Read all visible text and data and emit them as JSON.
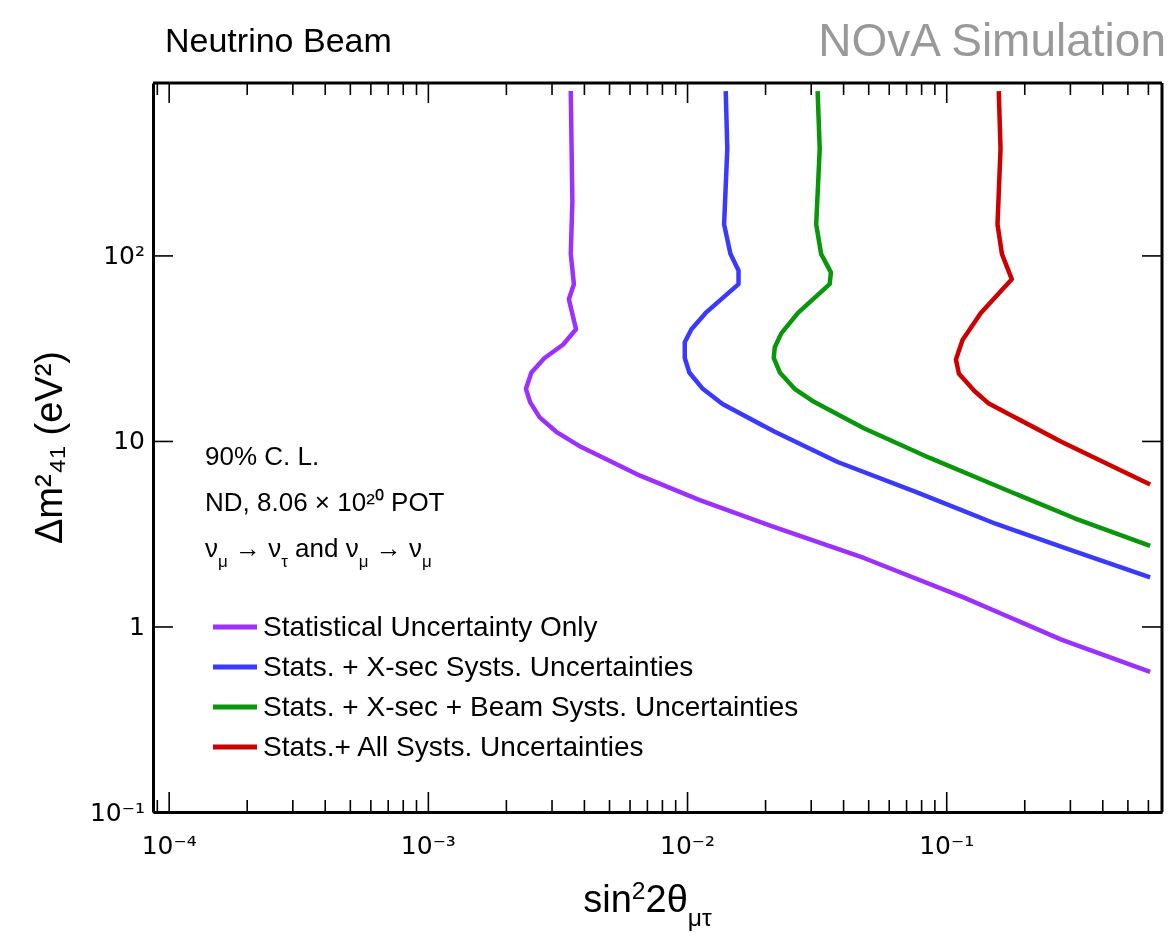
{
  "chart_data": {
    "type": "line",
    "title": "Neutrino Beam",
    "subtitle": "NOvA Simulation",
    "xlabel": "sin$^{2}$2θ$_{μτ}$",
    "ylabel": "Δm²₄₁ (eV²)",
    "annotations": [
      "90% C. L.",
      "ND, 8.06 × 10²⁰ POT",
      "ν$_{μ}$ → ν$_{τ}$ and ν$_{μ}$ → ν$_{μ}$"
    ],
    "log": "xy",
    "xlim": [
      8.7e-05,
      0.68
    ],
    "ylim": [
      0.1,
      850
    ],
    "xticks": [
      {
        "value": 9e-05,
        "label": null
      },
      {
        "value": 0.0001,
        "label": "10⁻⁴"
      },
      {
        "value": 0.0002,
        "label": null
      },
      {
        "value": 0.0003,
        "label": null
      },
      {
        "value": 0.0004,
        "label": null
      },
      {
        "value": 0.0005,
        "label": null
      },
      {
        "value": 0.0006,
        "label": null
      },
      {
        "value": 0.0007,
        "label": null
      },
      {
        "value": 0.0008,
        "label": null
      },
      {
        "value": 0.0009,
        "label": null
      },
      {
        "value": 0.001,
        "label": "10⁻³"
      },
      {
        "value": 0.002,
        "label": null
      },
      {
        "value": 0.003,
        "label": null
      },
      {
        "value": 0.004,
        "label": null
      },
      {
        "value": 0.005,
        "label": null
      },
      {
        "value": 0.006,
        "label": null
      },
      {
        "value": 0.007,
        "label": null
      },
      {
        "value": 0.008,
        "label": null
      },
      {
        "value": 0.009,
        "label": null
      },
      {
        "value": 0.01,
        "label": "10⁻²"
      },
      {
        "value": 0.02,
        "label": null
      },
      {
        "value": 0.03,
        "label": null
      },
      {
        "value": 0.04,
        "label": null
      },
      {
        "value": 0.05,
        "label": null
      },
      {
        "value": 0.06,
        "label": null
      },
      {
        "value": 0.07,
        "label": null
      },
      {
        "value": 0.08,
        "label": null
      },
      {
        "value": 0.09,
        "label": null
      },
      {
        "value": 0.1,
        "label": "10⁻¹"
      },
      {
        "value": 0.2,
        "label": null
      },
      {
        "value": 0.3,
        "label": null
      },
      {
        "value": 0.4,
        "label": null
      },
      {
        "value": 0.5,
        "label": null
      },
      {
        "value": 0.6,
        "label": null
      }
    ],
    "yticks": [
      {
        "value": 0.1,
        "label": "10⁻¹"
      },
      1,
      10,
      {
        "value": 100,
        "label": "10²"
      }
    ],
    "grid": false,
    "legend": "bottom left",
    "marker": "none",
    "line_style": "solid",
    "series": [
      {
        "name": "Statistical Uncertainty Only",
        "color": "#9b30ff",
        "x": [
          0.00356,
          0.00361,
          0.00356,
          0.00366,
          0.0035,
          0.00373,
          0.00332,
          0.00282,
          0.00251,
          0.00239,
          0.00248,
          0.0027,
          0.00313,
          0.00389,
          0.00659,
          0.0112,
          0.0212,
          0.0481,
          0.116,
          0.278,
          0.612
        ],
        "values": [
          769,
          195,
          102,
          70,
          58,
          40,
          33,
          28,
          23.4,
          19.1,
          16.2,
          13.4,
          11.2,
          9.3,
          6.5,
          4.8,
          3.47,
          2.34,
          1.44,
          0.85,
          0.57
        ]
      },
      {
        "name": "Stats. + X-sec Systs. Uncertainties",
        "color": "#3a3aff",
        "x": [
          0.0141,
          0.0143,
          0.0139,
          0.0147,
          0.0158,
          0.0158,
          0.0118,
          0.0104,
          0.0098,
          0.0098,
          0.0102,
          0.0115,
          0.0137,
          0.0218,
          0.0381,
          0.0767,
          0.155,
          0.313,
          0.612
        ],
        "values": [
          769,
          375,
          147,
          102,
          83,
          70,
          49,
          40,
          34,
          28,
          23.4,
          19.1,
          15.8,
          11.2,
          7.7,
          5.3,
          3.58,
          2.54,
          1.84
        ]
      },
      {
        "name": "Stats. + X-sec + Beam Systs. Uncertainties",
        "color": "#0a960a",
        "x": [
          0.0319,
          0.0325,
          0.0315,
          0.0329,
          0.0359,
          0.0355,
          0.0268,
          0.0231,
          0.0218,
          0.0216,
          0.0228,
          0.026,
          0.031,
          0.0481,
          0.0864,
          0.155,
          0.313,
          0.612
        ],
        "values": [
          769,
          375,
          147,
          102,
          81,
          70,
          49,
          38,
          32,
          28,
          23.4,
          19.1,
          16.2,
          11.7,
          8.1,
          5.75,
          3.83,
          2.72
        ]
      },
      {
        "name": "Stats.+ All Systs. Uncertainties",
        "color": "#cc0000",
        "x": [
          0.1595,
          0.162,
          0.1577,
          0.164,
          0.179,
          0.136,
          0.1156,
          0.109,
          0.112,
          0.1285,
          0.146,
          0.278,
          0.612
        ],
        "values": [
          769,
          375,
          147,
          102,
          74.5,
          49,
          35,
          27.5,
          23,
          18.6,
          15.9,
          9.9,
          5.82
        ]
      }
    ]
  }
}
